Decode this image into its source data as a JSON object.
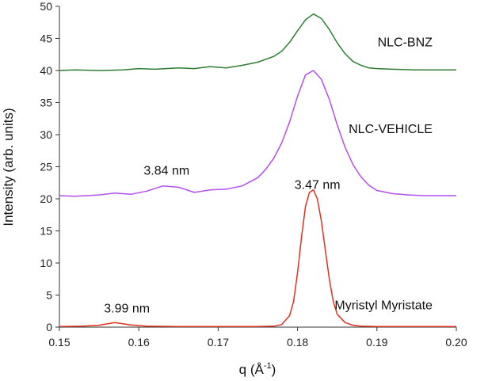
{
  "chart_data": {
    "type": "line",
    "title": "",
    "xlabel_main": "q (Å",
    "xlabel_sup": "-1",
    "xlabel_end": ")",
    "ylabel": "Intensity (arb. units)",
    "xlim": [
      0.15,
      0.2
    ],
    "ylim": [
      0,
      50
    ],
    "x_ticks": [
      0.15,
      0.16,
      0.17,
      0.18,
      0.19,
      0.2
    ],
    "x_tick_labels": [
      "0.15",
      "0.16",
      "0.17",
      "0.18",
      "0.19",
      "0.20"
    ],
    "y_ticks": [
      0,
      5,
      10,
      15,
      20,
      25,
      30,
      35,
      40,
      45,
      50
    ],
    "y_tick_labels": [
      "0",
      "5",
      "10",
      "15",
      "20",
      "25",
      "30",
      "35",
      "40",
      "45",
      "50"
    ],
    "grid": false,
    "series": [
      {
        "name": "NLC-BNZ",
        "color": "#2e7d32",
        "x": [
          0.15,
          0.152,
          0.155,
          0.158,
          0.16,
          0.162,
          0.165,
          0.167,
          0.169,
          0.171,
          0.173,
          0.175,
          0.177,
          0.178,
          0.179,
          0.18,
          0.181,
          0.182,
          0.183,
          0.184,
          0.185,
          0.186,
          0.187,
          0.188,
          0.189,
          0.19,
          0.192,
          0.195,
          0.198,
          0.2
        ],
        "values": [
          40.0,
          40.1,
          40.0,
          40.1,
          40.3,
          40.2,
          40.4,
          40.3,
          40.6,
          40.4,
          40.8,
          41.3,
          42.2,
          43.0,
          44.4,
          46.2,
          47.9,
          48.8,
          48.1,
          46.4,
          44.3,
          42.6,
          41.4,
          40.8,
          40.4,
          40.3,
          40.2,
          40.1,
          40.1,
          40.1
        ]
      },
      {
        "name": "NLC-VEHICLE",
        "color": "#b44ff0",
        "x": [
          0.15,
          0.152,
          0.155,
          0.157,
          0.159,
          0.161,
          0.163,
          0.165,
          0.167,
          0.169,
          0.171,
          0.173,
          0.175,
          0.176,
          0.177,
          0.178,
          0.179,
          0.18,
          0.181,
          0.182,
          0.183,
          0.184,
          0.185,
          0.186,
          0.187,
          0.188,
          0.189,
          0.19,
          0.192,
          0.194,
          0.196,
          0.198,
          0.2
        ],
        "values": [
          20.5,
          20.4,
          20.6,
          20.9,
          20.7,
          21.2,
          22.0,
          21.8,
          21.0,
          21.4,
          21.5,
          22.0,
          23.3,
          24.6,
          26.3,
          28.7,
          32.0,
          36.0,
          39.3,
          40.0,
          38.6,
          35.5,
          31.5,
          28.0,
          25.3,
          23.4,
          22.1,
          21.3,
          20.8,
          20.6,
          20.5,
          20.5,
          20.5
        ]
      },
      {
        "name": "Myristyl Myristate",
        "color": "#e0301e",
        "x": [
          0.15,
          0.153,
          0.155,
          0.157,
          0.159,
          0.161,
          0.165,
          0.17,
          0.175,
          0.177,
          0.178,
          0.179,
          0.1795,
          0.18,
          0.1805,
          0.181,
          0.1815,
          0.182,
          0.1825,
          0.183,
          0.1835,
          0.184,
          0.1845,
          0.185,
          0.186,
          0.187,
          0.188,
          0.19,
          0.195,
          0.2
        ],
        "values": [
          0.1,
          0.15,
          0.3,
          0.7,
          0.35,
          0.15,
          0.1,
          0.1,
          0.1,
          0.15,
          0.4,
          1.8,
          4.0,
          8.5,
          14.0,
          18.8,
          21.0,
          21.4,
          20.0,
          16.5,
          12.0,
          7.5,
          4.0,
          2.0,
          0.7,
          0.3,
          0.15,
          0.1,
          0.1,
          0.1
        ]
      }
    ],
    "series_labels": [
      {
        "text": "NLC-BNZ",
        "x": 0.197,
        "y": 44.5
      },
      {
        "text": "NLC-VEHICLE",
        "x": 0.197,
        "y": 31.0
      },
      {
        "text": "Myristyl Myristate",
        "x": 0.197,
        "y": 3.5
      }
    ],
    "annotations": [
      {
        "text": "3.84 nm",
        "x": 0.1635,
        "y": 24.5
      },
      {
        "text": "3.47 nm",
        "x": 0.1825,
        "y": 22.3
      },
      {
        "text": "3.99 nm",
        "x": 0.1585,
        "y": 3.0
      }
    ]
  }
}
